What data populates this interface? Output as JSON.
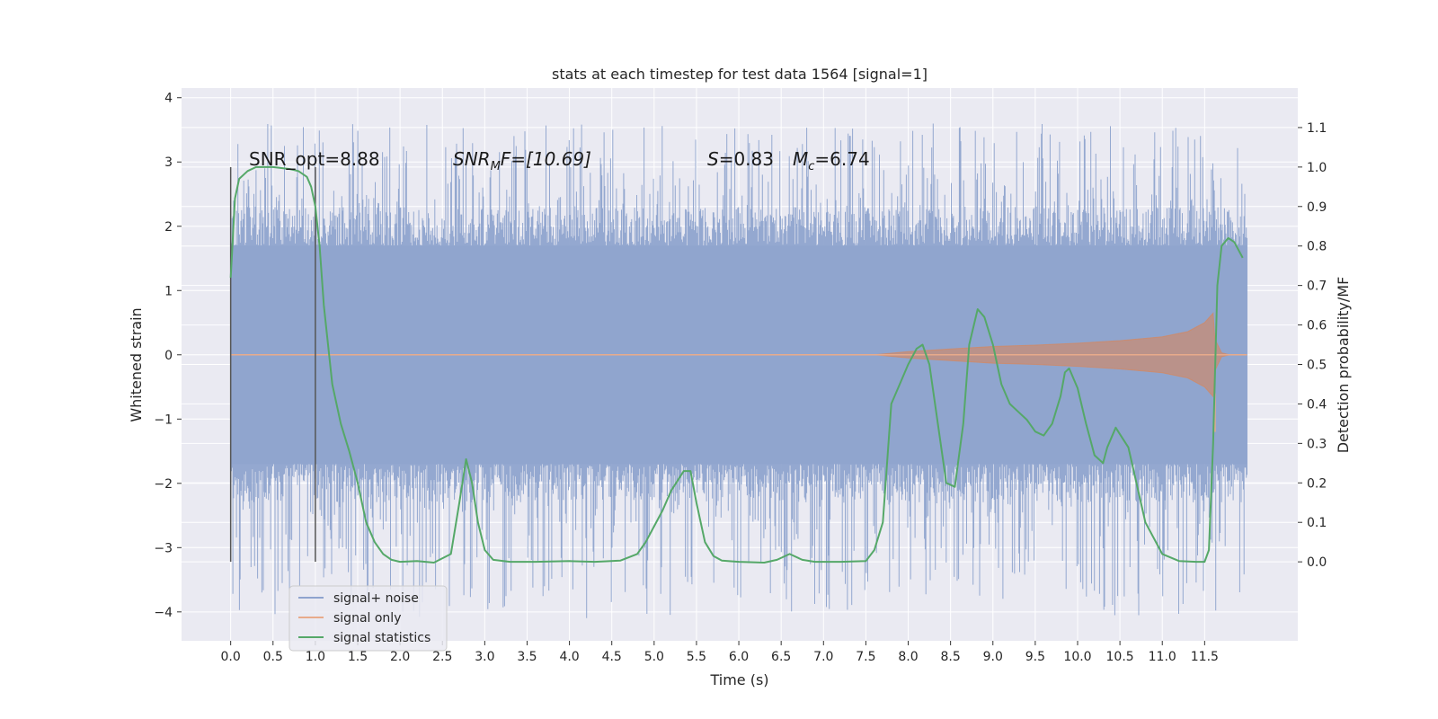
{
  "chart_data": {
    "type": "line",
    "title": "stats at each timestep for test data 1564 [signal=1]",
    "xlabel": "Time (s)",
    "ylabel_left": "Whitened strain",
    "ylabel_right": "Detection probability/MF",
    "xlim": [
      -0.58,
      12.6
    ],
    "ylim_left": [
      -4.45,
      4.15
    ],
    "ylim_right": [
      -0.2,
      1.2
    ],
    "x_ticks": [
      "0.0",
      "0.5",
      "1.0",
      "1.5",
      "2.0",
      "2.5",
      "3.0",
      "3.5",
      "4.0",
      "4.5",
      "5.0",
      "5.5",
      "6.0",
      "6.5",
      "7.0",
      "7.5",
      "8.0",
      "8.5",
      "9.0",
      "9.5",
      "10.0",
      "10.5",
      "11.0",
      "11.5"
    ],
    "y_ticks_left": [
      "4",
      "3",
      "2",
      "1",
      "0",
      "−1",
      "−2",
      "−3",
      "−4"
    ],
    "y_ticks_right": [
      "1.1",
      "1.0",
      "0.9",
      "0.8",
      "0.7",
      "0.6",
      "0.5",
      "0.4",
      "0.3",
      "0.2",
      "0.1",
      "0.0"
    ],
    "grid": true,
    "legend_position": "bottom-left",
    "colors": {
      "background": "#eaeaf2",
      "grid": "#ffffff",
      "signal_noise": "#8fa4ce",
      "signal_only": "#dd8452",
      "statistics": "#55a868",
      "markers": "#555555"
    },
    "annotations": {
      "snr_opt": "SNR_opt=8.88",
      "snr_mf_base": "SNR",
      "snr_mf_sub": "M",
      "snr_mf_rest": "F=[10.69]",
      "s_label": "S",
      "s_value": "=0.83",
      "mc_label": "M",
      "mc_sub": "c",
      "mc_value": "=6.74"
    },
    "series": [
      {
        "name": "signal+ noise",
        "axis": "left",
        "x_range": [
          0.0,
          12.0
        ],
        "envelope_upper": 1.7,
        "envelope_lower": -1.7,
        "peak_max": 3.6,
        "peak_min": -4.1
      },
      {
        "name": "signal only",
        "axis": "left",
        "x": [
          0.0,
          7.6,
          8.0,
          8.5,
          9.0,
          9.5,
          10.0,
          10.5,
          11.0,
          11.3,
          11.5,
          11.6,
          11.62,
          11.7,
          11.8,
          12.0
        ],
        "amplitude": [
          0.0,
          0.0,
          0.05,
          0.09,
          0.13,
          0.15,
          0.18,
          0.22,
          0.28,
          0.36,
          0.5,
          0.65,
          0.25,
          0.03,
          0.0,
          0.0
        ]
      },
      {
        "name": "signal statistics",
        "axis": "right",
        "x": [
          0.0,
          0.05,
          0.1,
          0.2,
          0.3,
          0.5,
          0.7,
          0.8,
          0.9,
          0.95,
          1.0,
          1.05,
          1.1,
          1.2,
          1.3,
          1.4,
          1.5,
          1.6,
          1.7,
          1.8,
          1.9,
          2.0,
          2.2,
          2.4,
          2.6,
          2.7,
          2.78,
          2.85,
          2.92,
          3.0,
          3.1,
          3.3,
          3.6,
          4.0,
          4.3,
          4.6,
          4.8,
          4.9,
          5.0,
          5.1,
          5.2,
          5.35,
          5.43,
          5.5,
          5.6,
          5.7,
          5.8,
          6.0,
          6.3,
          6.45,
          6.6,
          6.75,
          6.9,
          7.2,
          7.5,
          7.6,
          7.7,
          7.8,
          7.9,
          8.0,
          8.1,
          8.17,
          8.25,
          8.35,
          8.45,
          8.55,
          8.65,
          8.72,
          8.82,
          8.9,
          9.0,
          9.1,
          9.2,
          9.3,
          9.4,
          9.5,
          9.6,
          9.7,
          9.8,
          9.85,
          9.9,
          10.0,
          10.1,
          10.2,
          10.3,
          10.35,
          10.45,
          10.6,
          10.8,
          11.0,
          11.2,
          11.4,
          11.5,
          11.55,
          11.6,
          11.65,
          11.7,
          11.78,
          11.85,
          11.95
        ],
        "values": [
          0.72,
          0.92,
          0.97,
          0.99,
          1.0,
          1.0,
          0.995,
          0.99,
          0.975,
          0.95,
          0.9,
          0.8,
          0.65,
          0.45,
          0.35,
          0.28,
          0.2,
          0.1,
          0.05,
          0.02,
          0.005,
          0.0,
          0.002,
          -0.002,
          0.02,
          0.15,
          0.26,
          0.2,
          0.1,
          0.03,
          0.005,
          0.0,
          0.0,
          0.002,
          0.0,
          0.003,
          0.02,
          0.05,
          0.09,
          0.13,
          0.18,
          0.23,
          0.23,
          0.15,
          0.05,
          0.015,
          0.003,
          0.0,
          -0.002,
          0.005,
          0.02,
          0.005,
          0.0,
          0.0,
          0.002,
          0.03,
          0.1,
          0.4,
          0.45,
          0.5,
          0.54,
          0.55,
          0.5,
          0.35,
          0.2,
          0.19,
          0.35,
          0.55,
          0.64,
          0.62,
          0.55,
          0.45,
          0.4,
          0.38,
          0.36,
          0.33,
          0.32,
          0.35,
          0.42,
          0.48,
          0.49,
          0.44,
          0.35,
          0.27,
          0.25,
          0.29,
          0.34,
          0.29,
          0.1,
          0.02,
          0.002,
          0.0,
          0.0,
          0.03,
          0.3,
          0.7,
          0.8,
          0.82,
          0.81,
          0.77
        ]
      }
    ],
    "vertical_markers_x": [
      0.0,
      1.0
    ]
  }
}
